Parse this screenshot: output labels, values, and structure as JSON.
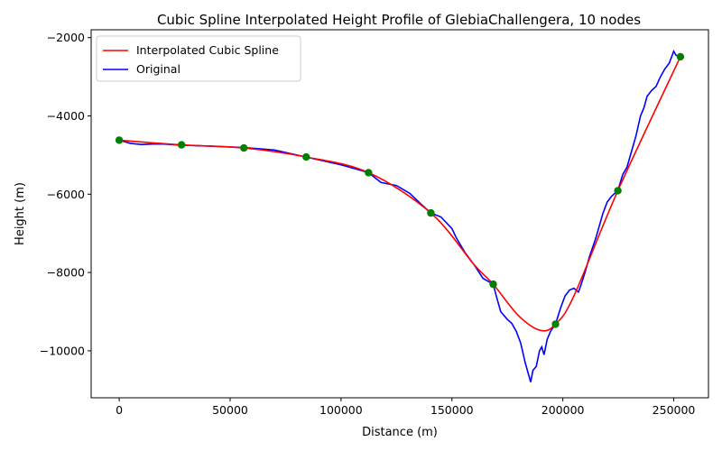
{
  "chart_data": {
    "type": "line",
    "title": "Cubic Spline Interpolated Height Profile of GlebiaChallengera, 10 nodes",
    "xlabel": "Distance (m)",
    "ylabel": "Height (m)",
    "xlim": [
      -12650,
      265650
    ],
    "ylim": [
      -11200,
      -1800
    ],
    "xticks": [
      0,
      50000,
      100000,
      150000,
      200000,
      250000
    ],
    "xtick_labels": [
      "0",
      "50000",
      "100000",
      "150000",
      "200000",
      "250000"
    ],
    "yticks": [
      -10000,
      -8000,
      -6000,
      -4000,
      -2000
    ],
    "ytick_labels": [
      "−10000",
      "−8000",
      "−6000",
      "−4000",
      "−2000"
    ],
    "grid": false,
    "legend_position": "upper left",
    "colors": {
      "spline": "#ff0000",
      "original": "#0000ff",
      "nodes": "#008000"
    },
    "series": [
      {
        "name": "Interpolated Cubic Spline",
        "x": [
          0,
          28100,
          56200,
          84300,
          112400,
          140500,
          160000,
          168600,
          180000,
          190000,
          196700,
          205000,
          224800,
          253000
        ],
        "y": [
          -4620,
          -4740,
          -4820,
          -5050,
          -5450,
          -6480,
          -7800,
          -8300,
          -9100,
          -9480,
          -9320,
          -8600,
          -5910,
          -2490
        ]
      },
      {
        "name": "Original",
        "x": [
          0,
          5000,
          10000,
          15000,
          20000,
          28100,
          40000,
          56200,
          70000,
          84300,
          100000,
          112400,
          118000,
          125000,
          131000,
          136000,
          140500,
          145000,
          150000,
          152000,
          156000,
          160000,
          164000,
          168600,
          170000,
          172000,
          175000,
          177000,
          179000,
          181000,
          183000,
          184500,
          185500,
          186500,
          188000,
          189500,
          190500,
          191500,
          193000,
          194500,
          196700,
          199000,
          201000,
          203000,
          205000,
          207000,
          208000,
          210000,
          212000,
          215000,
          218000,
          220000,
          222000,
          224800,
          227000,
          229000,
          231000,
          233000,
          235000,
          236500,
          238000,
          240000,
          242000,
          244000,
          246000,
          248000,
          250000,
          251000,
          253000
        ],
        "y": [
          -4620,
          -4700,
          -4730,
          -4720,
          -4720,
          -4750,
          -4770,
          -4810,
          -4870,
          -5050,
          -5250,
          -5450,
          -5700,
          -5780,
          -5980,
          -6250,
          -6480,
          -6580,
          -6880,
          -7120,
          -7500,
          -7800,
          -8150,
          -8300,
          -8600,
          -9000,
          -9200,
          -9300,
          -9500,
          -9800,
          -10300,
          -10600,
          -10800,
          -10500,
          -10400,
          -10000,
          -9900,
          -10100,
          -9700,
          -9500,
          -9320,
          -8900,
          -8600,
          -8450,
          -8400,
          -8500,
          -8350,
          -8000,
          -7600,
          -7100,
          -6500,
          -6200,
          -6050,
          -5910,
          -5500,
          -5300,
          -4900,
          -4500,
          -4000,
          -3800,
          -3500,
          -3350,
          -3250,
          -3000,
          -2800,
          -2650,
          -2350,
          -2450,
          -2490
        ]
      }
    ],
    "nodes": {
      "x": [
        0,
        28100,
        56200,
        84300,
        112400,
        140500,
        168600,
        196700,
        224800,
        253000
      ],
      "y": [
        -4620,
        -4740,
        -4820,
        -5050,
        -5450,
        -6480,
        -8300,
        -9320,
        -5910,
        -2490
      ]
    }
  }
}
